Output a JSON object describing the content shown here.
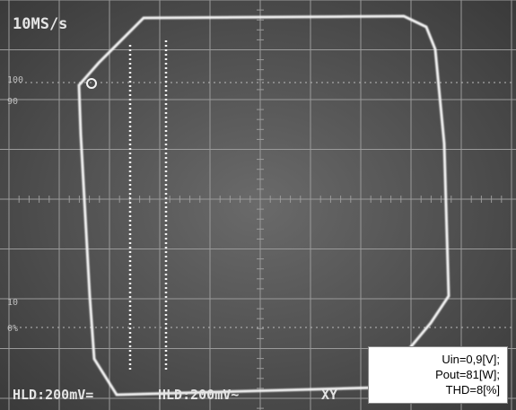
{
  "screen": {
    "sample_rate": "10MS/s",
    "scale_labels": [
      "100",
      "90",
      "10",
      "0%"
    ],
    "status": [
      "HLD:200mV=",
      "HLD:200mV~",
      "XY"
    ]
  },
  "caption": {
    "lines": [
      "Uin=0,9[V];",
      "Pout=81[W];",
      "THD=8[%]"
    ]
  }
}
